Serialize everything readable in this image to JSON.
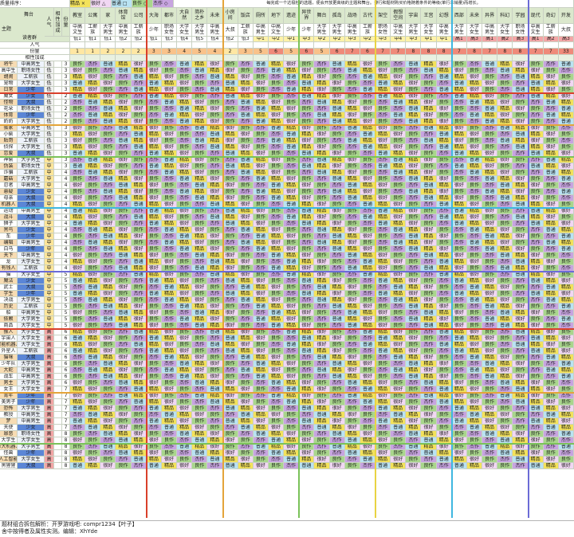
{
  "sheet_title": "质量排序：",
  "legend": [
    {
      "label": "精品 ×",
      "color": "#f3e25b"
    },
    {
      "label": "很好 △",
      "color": "#f1d7f3"
    },
    {
      "label": "普通 □",
      "color": "#b9e3f3"
    },
    {
      "label": "良作 ○",
      "color": "#a9d68c"
    },
    {
      "label": "杰作 ◇",
      "color": "#c7a4e0"
    }
  ],
  "note": "每完成一个达极杜的选题，便会开放更高级的主题和舞台。排行和题材购买价格随着条件的等级(单行本销量)而增长。",
  "corner_labels": {
    "stage": "舞台",
    "theme": "主题",
    "reader": "读者群",
    "popularity": "人气",
    "cost": "份量"
  },
  "left_header": {
    "reader": "读者群",
    "pop": "人气",
    "bonus": "相性加成",
    "cost": "份量"
  },
  "stage_groups": [
    {
      "name": "教室",
      "reader": "中高文生",
      "tier": "低1"
    },
    {
      "name": "公寓",
      "reader": "工薪族",
      "tier": "低1"
    },
    {
      "name": "家",
      "reader": "大学男生",
      "tier": "低1"
    },
    {
      "name": "体育馆",
      "reader": "中高男生",
      "tier": "低2"
    },
    {
      "name": "公司",
      "reader": "工薪族",
      "tier": "低2"
    },
    {
      "name": "大海",
      "reader": "少年",
      "tier": "低1"
    },
    {
      "name": "都市",
      "reader": "职场女性",
      "tier": "低3"
    },
    {
      "name": "大自然",
      "reader": "大学女生",
      "tier": "低4"
    },
    {
      "name": "简朴之乡",
      "reader": "大学男生",
      "tier": "低5"
    },
    {
      "name": "未来",
      "reader": "中高男生",
      "tier": "低4"
    },
    {
      "name": "小房间",
      "reader": "大叔",
      "tier": "低2"
    },
    {
      "name": "饭店",
      "reader": "工薪族",
      "tier": "低3"
    },
    {
      "name": "厕所",
      "reader": "中高男生",
      "tier": "中1"
    },
    {
      "name": "地下",
      "reader": "中高文生",
      "tier": "中2"
    },
    {
      "name": "遗迹",
      "reader": "少年",
      "tier": "中1"
    },
    {
      "name": "异世界",
      "reader": "少年",
      "tier": "中3"
    },
    {
      "name": "舞台",
      "reader": "大学男生",
      "tier": "中2"
    },
    {
      "name": "孤岛",
      "reader": "大学男生",
      "tier": "中2"
    },
    {
      "name": "战场",
      "reader": "中高男生",
      "tier": "中3"
    },
    {
      "name": "古代",
      "reader": "工薪族",
      "tier": "中2"
    },
    {
      "name": "架空",
      "reader": "职场女性",
      "tier": "中3"
    },
    {
      "name": "假想空间",
      "reader": "中高文生",
      "tier": "中4"
    },
    {
      "name": "宇宙",
      "reader": "大学男生",
      "tier": "中3"
    },
    {
      "name": "王宫",
      "reader": "大学女生",
      "tier": "中1"
    },
    {
      "name": "幻想",
      "reader": "中高男生",
      "tier": "中1"
    },
    {
      "name": "西部",
      "reader": "大学男生",
      "tier": "高1"
    },
    {
      "name": "未来",
      "reader": "大学女生",
      "tier": "高3"
    },
    {
      "name": "异界",
      "reader": "中高男生",
      "tier": "高1"
    },
    {
      "name": "科幻",
      "reader": "大学女生",
      "tier": "高2"
    },
    {
      "name": "学园",
      "reader": "职场女性",
      "tier": "高3"
    },
    {
      "name": "现代",
      "reader": "中高文生",
      "tier": "高1"
    },
    {
      "name": "奇幻",
      "reader": "工薪族",
      "tier": "高2"
    },
    {
      "name": "开发",
      "reader": "大叔",
      "tier": "高3"
    }
  ],
  "popularity_row": [
    "1",
    "1",
    "2",
    "2",
    "2",
    "3",
    "3",
    "4",
    "5",
    "4",
    "2",
    "3",
    "5",
    "6",
    "5",
    "6",
    "5",
    "6",
    "7",
    "6",
    "7",
    "7",
    "8",
    "8",
    "8",
    "7",
    "8",
    "7",
    "8",
    "8",
    "7",
    "7",
    "33"
  ],
  "themes": [
    {
      "name": "将牛",
      "reader": "中高男生",
      "pop": "低",
      "cost": "3"
    },
    {
      "name": "高中生",
      "reader": "职场女性",
      "pop": "低",
      "cost": "3"
    },
    {
      "name": "胡闹",
      "reader": "工薪族",
      "pop": "低",
      "cost": "3"
    },
    {
      "name": "宠物",
      "reader": "大学女生",
      "pop": "低",
      "cost": "3"
    },
    {
      "name": "日常",
      "reader": "少年",
      "pop": "低",
      "cost": "3"
    },
    {
      "name": "魔女",
      "reader": "少女",
      "pop": "低",
      "cost": "2"
    },
    {
      "name": "怪物",
      "reader": "大叔",
      "pop": "低",
      "cost": "2"
    },
    {
      "name": "花朵",
      "reader": "职场女性",
      "pop": "低",
      "cost": "2"
    },
    {
      "name": "体育",
      "reader": "少年",
      "pop": "低",
      "cost": "2"
    },
    {
      "name": "奶奶",
      "reader": "大学男生",
      "pop": "低",
      "cost": "2"
    },
    {
      "name": "蛋家",
      "reader": "中高男生",
      "pop": "低",
      "cost": "3"
    },
    {
      "name": "小偷",
      "reader": "大学男生",
      "pop": "低",
      "cost": "3"
    },
    {
      "name": "贴哥",
      "reader": "工薪族",
      "pop": "低",
      "cost": "3"
    },
    {
      "name": "侦探",
      "reader": "大学男生",
      "pop": "低",
      "cost": "3"
    },
    {
      "name": "恋爱",
      "reader": "大叔",
      "pop": "低",
      "cost": "3"
    },
    {
      "name": "神偷",
      "reader": "大学男生",
      "pop": "中",
      "cost": "3"
    },
    {
      "name": "伪装",
      "reader": "职场女性",
      "pop": "中",
      "cost": "3"
    },
    {
      "name": "诈骗",
      "reader": "工薪族",
      "pop": "中",
      "cost": "4"
    },
    {
      "name": "蘑菇",
      "reader": "大学男生",
      "pop": "中",
      "cost": "4"
    },
    {
      "name": "忍者",
      "reader": "中高男生",
      "pop": "中",
      "cost": "4"
    },
    {
      "name": "悬疑",
      "reader": "少女",
      "pop": "中",
      "cost": "4"
    },
    {
      "name": "母亲",
      "reader": "大叔",
      "pop": "中",
      "cost": "4"
    },
    {
      "name": "机器人",
      "reader": "大叔",
      "pop": "中",
      "cost": "4"
    },
    {
      "name": "运动",
      "reader": "中高男生",
      "pop": "中",
      "cost": "4"
    },
    {
      "name": "战斗",
      "reader": "大叔",
      "pop": "中",
      "cost": "4"
    },
    {
      "name": "狮子",
      "reader": "大学男生",
      "pop": "中",
      "cost": "4"
    },
    {
      "name": "黑鸟",
      "reader": "少女",
      "pop": "中",
      "cost": "4"
    },
    {
      "name": "车",
      "reader": "少年",
      "pop": "中",
      "cost": "4"
    },
    {
      "name": "编辑",
      "reader": "中高男生",
      "pop": "中",
      "cost": "4"
    },
    {
      "name": "白马",
      "reader": "少年",
      "pop": "中",
      "cost": "4"
    },
    {
      "name": "天下",
      "reader": "中高男生",
      "pop": "中",
      "cost": "4"
    },
    {
      "name": "龙",
      "reader": "大学女生",
      "pop": "中",
      "cost": "4"
    },
    {
      "name": "有钱人",
      "reader": "工薪族",
      "pop": "中",
      "cost": "4"
    },
    {
      "name": "猫",
      "reader": "大学女生",
      "pop": "中",
      "cost": "5"
    },
    {
      "name": "魔法",
      "reader": "少女",
      "pop": "中",
      "cost": "5"
    },
    {
      "name": "武士",
      "reader": "大叔",
      "pop": "中",
      "cost": "5"
    },
    {
      "name": "学生",
      "reader": "少年",
      "pop": "中",
      "cost": "5"
    },
    {
      "name": "决战",
      "reader": "大学男生",
      "pop": "中",
      "cost": "5"
    },
    {
      "name": "历史",
      "reader": "工薪族",
      "pop": "中",
      "cost": "5"
    },
    {
      "name": "船",
      "reader": "中高男生",
      "pop": "中",
      "cost": "5"
    },
    {
      "name": "依赖",
      "reader": "大学男生",
      "pop": "中",
      "cost": "5"
    },
    {
      "name": "商品",
      "reader": "大学女生",
      "pop": "中",
      "cost": "5"
    },
    {
      "name": "猴人",
      "reader": "大学女生",
      "pop": "高",
      "cost": "6"
    },
    {
      "name": "宇宙人",
      "reader": "大学女生",
      "pop": "高",
      "cost": "6"
    },
    {
      "name": "智能机器人",
      "reader": "大学女生",
      "pop": "高",
      "cost": "6"
    },
    {
      "name": "外星人",
      "reader": "工薪族",
      "pop": "高",
      "cost": "6"
    },
    {
      "name": "猫咪",
      "reader": "大叔",
      "pop": "高",
      "cost": "6"
    },
    {
      "name": "少年队",
      "reader": "大学男生",
      "pop": "高",
      "cost": "6"
    },
    {
      "name": "大蛇",
      "reader": "中高男生",
      "pop": "高",
      "cost": "6"
    },
    {
      "name": "战车",
      "reader": "中高男生",
      "pop": "高",
      "cost": "6"
    },
    {
      "name": "男主",
      "reader": "大学男生",
      "pop": "高",
      "cost": "6"
    },
    {
      "name": "女王",
      "reader": "大学女生",
      "pop": "高",
      "cost": "7"
    },
    {
      "name": "青年",
      "reader": "少年",
      "pop": "高",
      "cost": "7"
    },
    {
      "name": "美男子",
      "reader": "少年",
      "pop": "高",
      "cost": "7"
    },
    {
      "name": "恐怖",
      "reader": "大学男生",
      "pop": "高",
      "cost": "7"
    },
    {
      "name": "教授",
      "reader": "中高男生",
      "pop": "高",
      "cost": "7"
    },
    {
      "name": "梦",
      "reader": "中高男生",
      "pop": "高",
      "cost": "7"
    },
    {
      "name": "天使",
      "reader": "少女",
      "pop": "高",
      "cost": "7"
    },
    {
      "name": "罪恶",
      "reader": "职场女性",
      "pop": "高",
      "cost": "8"
    },
    {
      "name": "大学生",
      "reader": "大学女生",
      "pop": "高",
      "cost": "8"
    },
    {
      "name": "巨大机器人",
      "reader": "大学男生",
      "pop": "高",
      "cost": "8"
    },
    {
      "name": "怪兽",
      "reader": "少年",
      "pop": "高",
      "cost": "8"
    },
    {
      "name": "人工智能",
      "reader": "大学女生",
      "pop": "高",
      "cost": "8"
    },
    {
      "name": "黑猩猩",
      "reader": "大叔",
      "pop": "高",
      "cost": "8"
    }
  ],
  "values": [
    "良作",
    "普通",
    "很好",
    "杰作",
    "精品"
  ],
  "colors": {
    "良作": "#a9d68c",
    "普通": "#b9e3f3",
    "很好": "#f1d7f3",
    "杰作": "#c7a4e0",
    "精品": "#f3e25b",
    "header": "#dbe8cd",
    "theme_col": "#f6d6a8",
    "reader_blue": "#4f7fd0",
    "pop_low": "#f2f2f2",
    "pop_mid": "#ffe69a",
    "pop_high": "#f3a6a6"
  },
  "footer": {
    "line1": "题材组合拆包解析：开罗游戏吧: compr1234【叶子】",
    "line2": "舍中按得者及属性实测。编辑：XhYde"
  }
}
